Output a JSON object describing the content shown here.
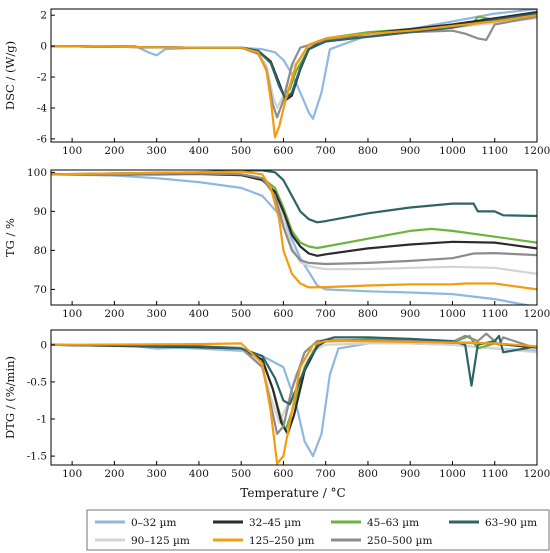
{
  "figure": {
    "xlabel": "Temperature / °C",
    "x_ticks": [
      100,
      200,
      300,
      400,
      500,
      600,
      700,
      800,
      900,
      1000,
      1100,
      1200
    ],
    "xlim": [
      50,
      1200
    ]
  },
  "series_style": [
    {
      "name": "0–32 µm",
      "color": "#8fb8e0"
    },
    {
      "name": "32–45 µm",
      "color": "#2b2b2b"
    },
    {
      "name": "45–63 µm",
      "color": "#6db33f"
    },
    {
      "name": "63–90 µm",
      "color": "#2e6466"
    },
    {
      "name": "90–125 µm",
      "color": "#d4d4d4"
    },
    {
      "name": "125–250 µm",
      "color": "#f39c12"
    },
    {
      "name": "250–500 µm",
      "color": "#8c8c8c"
    }
  ],
  "legend": {
    "ncol": 4,
    "placement": "bottom",
    "labels": [
      "0–32 µm",
      "32–45 µm",
      "45–63 µm",
      "63–90 µm",
      "90–125 µm",
      "125–250 µm",
      "250–500 µm"
    ]
  },
  "chart_data": [
    {
      "type": "line",
      "ylabel": "DSC / (W/g)",
      "ylim": [
        -6.2,
        2.4
      ],
      "y_ticks": [
        2,
        0,
        -2,
        -4,
        -6
      ],
      "xlim": [
        50,
        1200
      ],
      "series": [
        {
          "name": "0–32 µm",
          "x": [
            50,
            250,
            280,
            300,
            320,
            400,
            500,
            550,
            580,
            600,
            620,
            640,
            660,
            670,
            690,
            710,
            800,
            900,
            1000,
            1100,
            1200
          ],
          "y": [
            0,
            0,
            -0.4,
            -0.6,
            -0.2,
            -0.1,
            -0.1,
            -0.2,
            -0.4,
            -0.9,
            -1.8,
            -3.0,
            -4.3,
            -4.7,
            -3.0,
            -0.2,
            0.7,
            1.1,
            1.6,
            2.1,
            2.4
          ]
        },
        {
          "name": "32–45 µm",
          "x": [
            50,
            400,
            500,
            540,
            570,
            590,
            605,
            620,
            640,
            660,
            700,
            800,
            900,
            1000,
            1100,
            1200
          ],
          "y": [
            0,
            -0.1,
            -0.1,
            -0.3,
            -1.0,
            -2.4,
            -3.5,
            -3.2,
            -1.5,
            -0.2,
            0.4,
            0.8,
            1.1,
            1.4,
            1.8,
            2.2
          ]
        },
        {
          "name": "45–63 µm",
          "x": [
            50,
            400,
            500,
            540,
            570,
            590,
            600,
            615,
            630,
            660,
            700,
            800,
            900,
            1000,
            1050,
            1060,
            1100,
            1200
          ],
          "y": [
            0,
            -0.1,
            -0.1,
            -0.3,
            -1.0,
            -2.5,
            -3.1,
            -2.8,
            -1.6,
            -0.2,
            0.5,
            0.9,
            1.1,
            1.3,
            1.5,
            1.9,
            1.7,
            2.1
          ]
        },
        {
          "name": "63–90 µm",
          "x": [
            50,
            400,
            500,
            540,
            570,
            590,
            605,
            620,
            640,
            660,
            700,
            800,
            900,
            1000,
            1100,
            1200
          ],
          "y": [
            0,
            -0.1,
            -0.1,
            -0.3,
            -1.1,
            -2.6,
            -3.4,
            -3.0,
            -1.4,
            -0.2,
            0.3,
            0.6,
            0.9,
            1.2,
            1.7,
            2.1
          ]
        },
        {
          "name": "90–125 µm",
          "x": [
            50,
            400,
            500,
            540,
            560,
            575,
            585,
            600,
            620,
            660,
            700,
            800,
            900,
            1000,
            1100,
            1200
          ],
          "y": [
            0,
            -0.1,
            -0.1,
            -0.4,
            -1.3,
            -3.2,
            -4.0,
            -3.2,
            -1.4,
            -0.1,
            0.4,
            0.7,
            1.0,
            1.2,
            1.5,
            1.8
          ]
        },
        {
          "name": "125–250 µm",
          "x": [
            50,
            400,
            500,
            540,
            560,
            570,
            580,
            590,
            605,
            630,
            660,
            700,
            800,
            900,
            1000,
            1100,
            1200
          ],
          "y": [
            0,
            -0.1,
            -0.1,
            -0.4,
            -1.6,
            -3.5,
            -5.9,
            -5.2,
            -3.5,
            -1.2,
            0.1,
            0.5,
            0.8,
            1.0,
            1.3,
            1.6,
            2.0
          ]
        },
        {
          "name": "250–500 µm",
          "x": [
            50,
            400,
            500,
            540,
            560,
            575,
            585,
            600,
            620,
            640,
            700,
            800,
            900,
            1000,
            1030,
            1060,
            1080,
            1100,
            1200
          ],
          "y": [
            0,
            -0.1,
            -0.1,
            -0.5,
            -1.5,
            -3.8,
            -4.6,
            -3.5,
            -1.2,
            -0.1,
            0.4,
            0.6,
            0.9,
            1.0,
            0.8,
            0.5,
            0.4,
            1.4,
            1.9
          ]
        }
      ]
    },
    {
      "type": "line",
      "ylabel": "TG / %",
      "ylim": [
        66,
        100.6
      ],
      "y_ticks": [
        100,
        90,
        80,
        70
      ],
      "xlim": [
        50,
        1200
      ],
      "series": [
        {
          "name": "0–32 µm",
          "x": [
            50,
            200,
            300,
            400,
            500,
            550,
            600,
            640,
            680,
            700,
            800,
            900,
            1000,
            1100,
            1200
          ],
          "y": [
            99.5,
            99.2,
            98.5,
            97.5,
            96.0,
            94.0,
            88.0,
            78.0,
            71.0,
            70.0,
            69.5,
            69.2,
            68.8,
            67.5,
            65.5
          ]
        },
        {
          "name": "32–45 µm",
          "x": [
            50,
            300,
            400,
            500,
            550,
            580,
            600,
            620,
            640,
            660,
            680,
            700,
            800,
            900,
            1000,
            1100,
            1200
          ],
          "y": [
            99.5,
            99.5,
            99.6,
            99.3,
            98.0,
            95.0,
            90.0,
            84.0,
            81.0,
            79.2,
            78.6,
            79.0,
            80.5,
            81.5,
            82.2,
            82.0,
            80.5
          ]
        },
        {
          "name": "45–63 µm",
          "x": [
            50,
            400,
            500,
            550,
            580,
            600,
            620,
            640,
            660,
            680,
            700,
            800,
            900,
            950,
            1000,
            1100,
            1200
          ],
          "y": [
            99.5,
            99.8,
            99.5,
            98.5,
            96.0,
            91.0,
            85.0,
            82.0,
            81.0,
            80.6,
            81.0,
            83.0,
            85.0,
            85.5,
            85.0,
            83.5,
            82.0
          ]
        },
        {
          "name": "63–90 µm",
          "x": [
            50,
            400,
            500,
            550,
            580,
            600,
            620,
            640,
            660,
            680,
            700,
            800,
            900,
            1000,
            1050,
            1060,
            1100,
            1120,
            1200
          ],
          "y": [
            99.5,
            100.0,
            100.5,
            100.5,
            100.0,
            98.0,
            94.0,
            90.0,
            88.0,
            87.2,
            87.5,
            89.5,
            91.0,
            92.0,
            92.0,
            90.0,
            90.0,
            89.0,
            88.8
          ]
        },
        {
          "name": "90–125 µm",
          "x": [
            50,
            400,
            500,
            550,
            580,
            600,
            620,
            640,
            660,
            680,
            700,
            800,
            900,
            1000,
            1100,
            1200
          ],
          "y": [
            99.5,
            99.5,
            99.3,
            98.5,
            95.0,
            88.0,
            81.0,
            77.0,
            76.0,
            75.5,
            75.2,
            75.2,
            75.5,
            75.8,
            75.5,
            74.0
          ]
        },
        {
          "name": "125–250 µm",
          "x": [
            50,
            400,
            500,
            550,
            570,
            590,
            600,
            620,
            640,
            660,
            700,
            800,
            900,
            1000,
            1030,
            1100,
            1200
          ],
          "y": [
            99.5,
            100.0,
            100.2,
            99.5,
            96.0,
            88.0,
            80.0,
            74.0,
            71.5,
            70.5,
            70.6,
            71.0,
            71.3,
            71.3,
            71.5,
            71.5,
            70.0
          ]
        },
        {
          "name": "250–500 µm",
          "x": [
            50,
            400,
            500,
            550,
            580,
            600,
            620,
            640,
            660,
            700,
            800,
            900,
            1000,
            1050,
            1100,
            1200
          ],
          "y": [
            99.5,
            99.7,
            99.5,
            98.5,
            94.0,
            86.0,
            80.0,
            77.5,
            76.8,
            76.5,
            76.8,
            77.3,
            78.0,
            79.2,
            79.3,
            78.8
          ]
        }
      ]
    },
    {
      "type": "line",
      "ylabel": "DTG / (%/min)",
      "ylim": [
        -1.62,
        0.2
      ],
      "y_ticks": [
        0,
        -0.5,
        -1.0,
        -1.5
      ],
      "xlim": [
        50,
        1200
      ],
      "series": [
        {
          "name": "0–32 µm",
          "x": [
            50,
            250,
            300,
            350,
            400,
            500,
            550,
            600,
            630,
            650,
            670,
            690,
            710,
            730,
            800,
            900,
            1000,
            1100,
            1200
          ],
          "y": [
            0,
            -0.02,
            -0.05,
            -0.04,
            -0.05,
            -0.08,
            -0.15,
            -0.3,
            -0.8,
            -1.3,
            -1.5,
            -1.2,
            -0.4,
            -0.05,
            0.02,
            0.02,
            0.0,
            -0.05,
            -0.08
          ]
        },
        {
          "name": "32–45 µm",
          "x": [
            50,
            400,
            500,
            550,
            575,
            595,
            610,
            625,
            650,
            680,
            700,
            800,
            900,
            1000,
            1100,
            1200
          ],
          "y": [
            0,
            -0.03,
            -0.05,
            -0.2,
            -0.6,
            -1.05,
            -1.2,
            -0.95,
            -0.35,
            -0.02,
            0.05,
            0.06,
            0.05,
            0.03,
            0.02,
            -0.04
          ]
        },
        {
          "name": "45–63 µm",
          "x": [
            50,
            400,
            500,
            550,
            575,
            595,
            605,
            620,
            650,
            680,
            700,
            800,
            900,
            1000,
            1040,
            1060,
            1100,
            1200
          ],
          "y": [
            0,
            -0.03,
            -0.05,
            -0.2,
            -0.6,
            -1.0,
            -1.15,
            -0.9,
            -0.3,
            0.0,
            0.05,
            0.07,
            0.06,
            0.03,
            0.12,
            -0.05,
            0.02,
            -0.04
          ]
        },
        {
          "name": "63–90 µm",
          "x": [
            50,
            400,
            500,
            550,
            580,
            600,
            615,
            630,
            660,
            690,
            720,
            800,
            900,
            1000,
            1030,
            1045,
            1060,
            1100,
            1110,
            1120,
            1200
          ],
          "y": [
            0,
            -0.02,
            -0.05,
            -0.15,
            -0.45,
            -0.75,
            -0.8,
            -0.6,
            -0.2,
            0.05,
            0.1,
            0.1,
            0.08,
            0.05,
            0.0,
            -0.55,
            0.0,
            0.05,
            0.12,
            -0.1,
            -0.02
          ]
        },
        {
          "name": "90–125 µm",
          "x": [
            50,
            400,
            500,
            550,
            570,
            590,
            610,
            630,
            660,
            700,
            800,
            900,
            1000,
            1100,
            1200
          ],
          "y": [
            0,
            -0.03,
            -0.06,
            -0.3,
            -0.7,
            -1.05,
            -0.8,
            -0.4,
            -0.1,
            0.0,
            0.02,
            0.02,
            0.0,
            -0.05,
            -0.1
          ]
        },
        {
          "name": "125–250 µm",
          "x": [
            50,
            400,
            500,
            550,
            570,
            585,
            600,
            620,
            640,
            670,
            700,
            800,
            900,
            1000,
            1100,
            1200
          ],
          "y": [
            0,
            0.01,
            0.02,
            -0.25,
            -0.9,
            -1.6,
            -1.5,
            -0.9,
            -0.3,
            0.0,
            0.05,
            0.05,
            0.04,
            0.03,
            0.02,
            -0.02
          ]
        },
        {
          "name": "250–500 µm",
          "x": [
            50,
            400,
            500,
            550,
            570,
            585,
            600,
            620,
            650,
            680,
            700,
            800,
            900,
            1000,
            1030,
            1060,
            1080,
            1100,
            1110,
            1120,
            1200
          ],
          "y": [
            0,
            -0.02,
            -0.04,
            -0.3,
            -0.8,
            -1.2,
            -1.1,
            -0.6,
            -0.1,
            0.05,
            0.06,
            0.06,
            0.05,
            0.04,
            0.12,
            0.05,
            0.15,
            0.05,
            0.0,
            0.1,
            -0.05
          ]
        }
      ]
    }
  ]
}
